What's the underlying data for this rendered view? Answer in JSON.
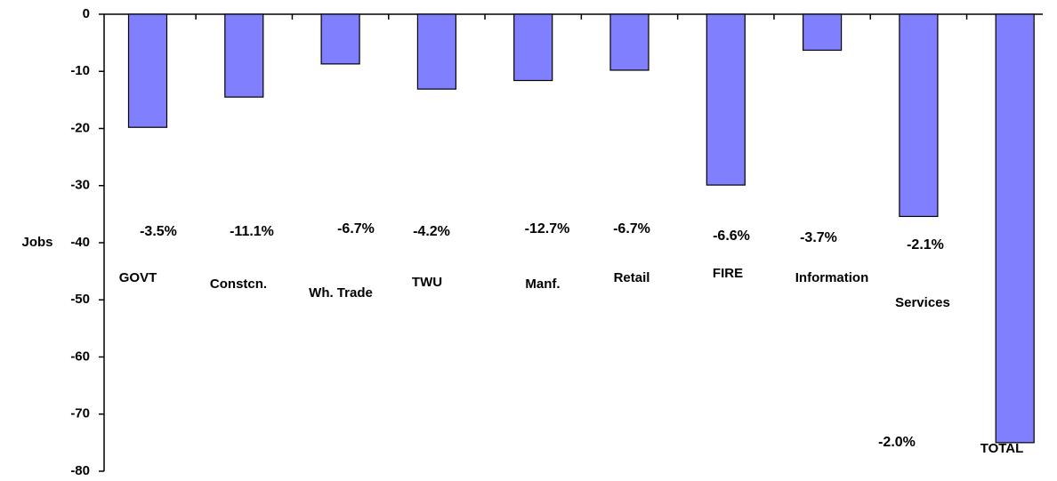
{
  "chart_data": {
    "type": "bar",
    "y_label": "Jobs",
    "categories": [
      "GOVT",
      "Constcn.",
      "Wh. Trade",
      "TWU",
      "Manf.",
      "Retail",
      "FIRE",
      "Information",
      "Services",
      "TOTAL"
    ],
    "values": [
      -19.8,
      -14.5,
      -8.7,
      -13.1,
      -11.6,
      -9.8,
      -29.9,
      -6.3,
      -35.4,
      -75
    ],
    "annotations": [
      "-3.5%",
      "-11.1%",
      "-6.7%",
      "-4.2%",
      "-12.7%",
      "-6.7%",
      "-6.6%",
      "-3.7%",
      "-2.1%",
      "-2.0%"
    ],
    "color": "#8080ff",
    "ylim": [
      -80,
      0
    ],
    "yticks": [
      0,
      -10,
      -20,
      -30,
      -40,
      -50,
      -60,
      -70,
      -80
    ]
  }
}
